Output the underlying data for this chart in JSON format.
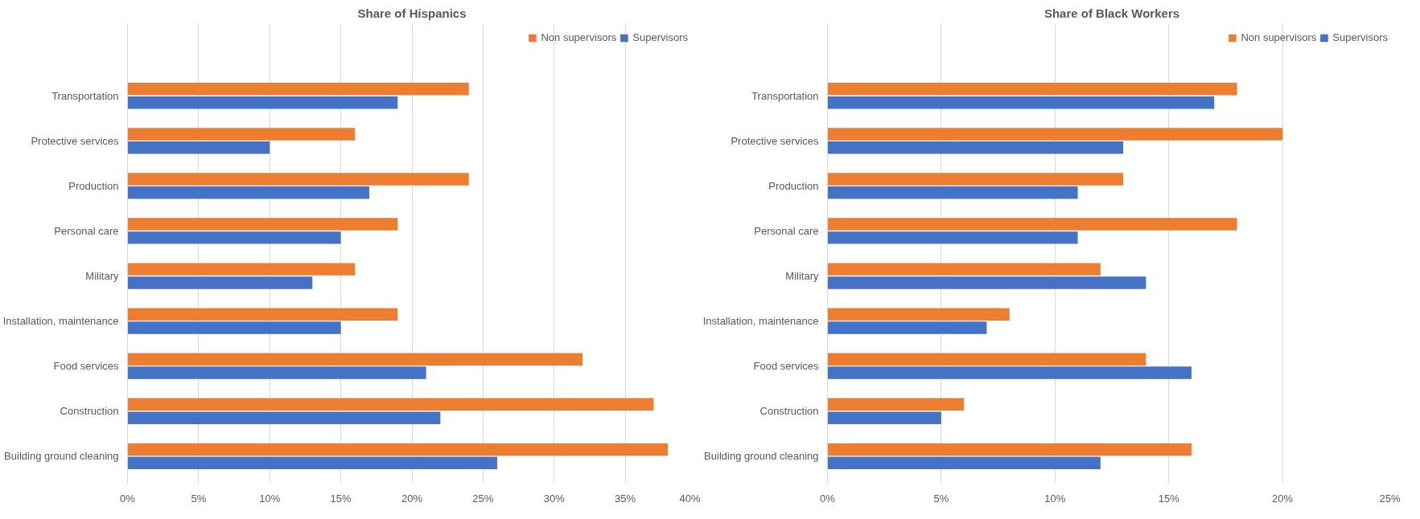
{
  "chart_data": [
    {
      "type": "bar",
      "orientation": "horizontal",
      "title": "Share of Hispanics",
      "categories": [
        "Transportation",
        "Protective services",
        "Production",
        "Personal care",
        "Military",
        "Installation, maintenance",
        "Food services",
        "Construction",
        "Building ground cleaning"
      ],
      "series": [
        {
          "name": "Non supervisors",
          "color": "#ed7d31",
          "values": [
            24,
            16,
            24,
            19,
            16,
            19,
            32,
            37,
            38
          ]
        },
        {
          "name": "Supervisors",
          "color": "#4472c4",
          "values": [
            19,
            10,
            17,
            15,
            13,
            15,
            21,
            22,
            26
          ]
        }
      ],
      "xlim": [
        0,
        40
      ],
      "xticks": [
        {
          "value": 0,
          "label": "0%"
        },
        {
          "value": 5,
          "label": "5%"
        },
        {
          "value": 10,
          "label": "10%"
        },
        {
          "value": 15,
          "label": "15%"
        },
        {
          "value": 20,
          "label": "20%"
        },
        {
          "value": 25,
          "label": "25%"
        },
        {
          "value": 30,
          "label": "30%"
        },
        {
          "value": 35,
          "label": "35%"
        },
        {
          "value": 40,
          "label": "40%"
        }
      ],
      "grid": "x",
      "legend": "top right"
    },
    {
      "type": "bar",
      "orientation": "horizontal",
      "title": "Share of Black Workers",
      "categories": [
        "Transportation",
        "Protective services",
        "Production",
        "Personal care",
        "Military",
        "Installation, maintenance",
        "Food services",
        "Construction",
        "Building ground cleaning"
      ],
      "series": [
        {
          "name": "Non supervisors",
          "color": "#ed7d31",
          "values": [
            18,
            20,
            13,
            18,
            12,
            8,
            14,
            6,
            16
          ]
        },
        {
          "name": "Supervisors",
          "color": "#4472c4",
          "values": [
            17,
            13,
            11,
            11,
            14,
            7,
            16,
            5,
            12
          ]
        }
      ],
      "xlim": [
        0,
        25
      ],
      "xticks": [
        {
          "value": 0,
          "label": "0%"
        },
        {
          "value": 5,
          "label": "5%"
        },
        {
          "value": 10,
          "label": "10%"
        },
        {
          "value": 15,
          "label": "15%"
        },
        {
          "value": 20,
          "label": "20%"
        },
        {
          "value": 25,
          "label": "25%"
        }
      ],
      "grid": "x",
      "legend": "top right"
    }
  ]
}
